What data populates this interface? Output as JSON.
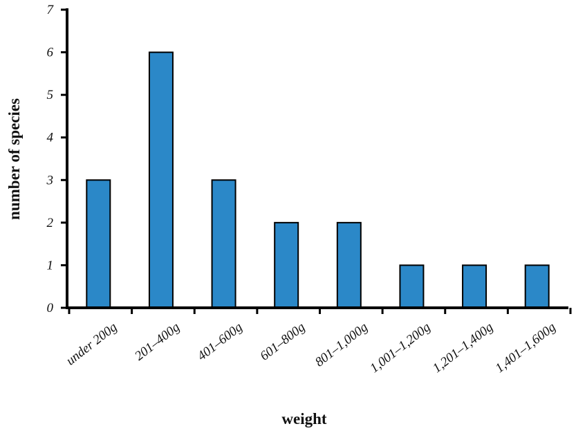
{
  "chart_data": {
    "type": "bar",
    "x_label": "weight",
    "y_label": "number of species",
    "categories": [
      "under 200g",
      "201–400g",
      "401–600g",
      "601–800g",
      "801–1,000g",
      "1,001–1,200g",
      "1,201–1,400g",
      "1,401–1,600g"
    ],
    "values": [
      3,
      6,
      3,
      2,
      2,
      1,
      1,
      1
    ],
    "color": "#2b88c8",
    "ylim": [
      0,
      7
    ],
    "yticks": [
      0,
      1,
      2,
      3,
      4,
      5,
      6,
      7
    ],
    "grid": false
  }
}
